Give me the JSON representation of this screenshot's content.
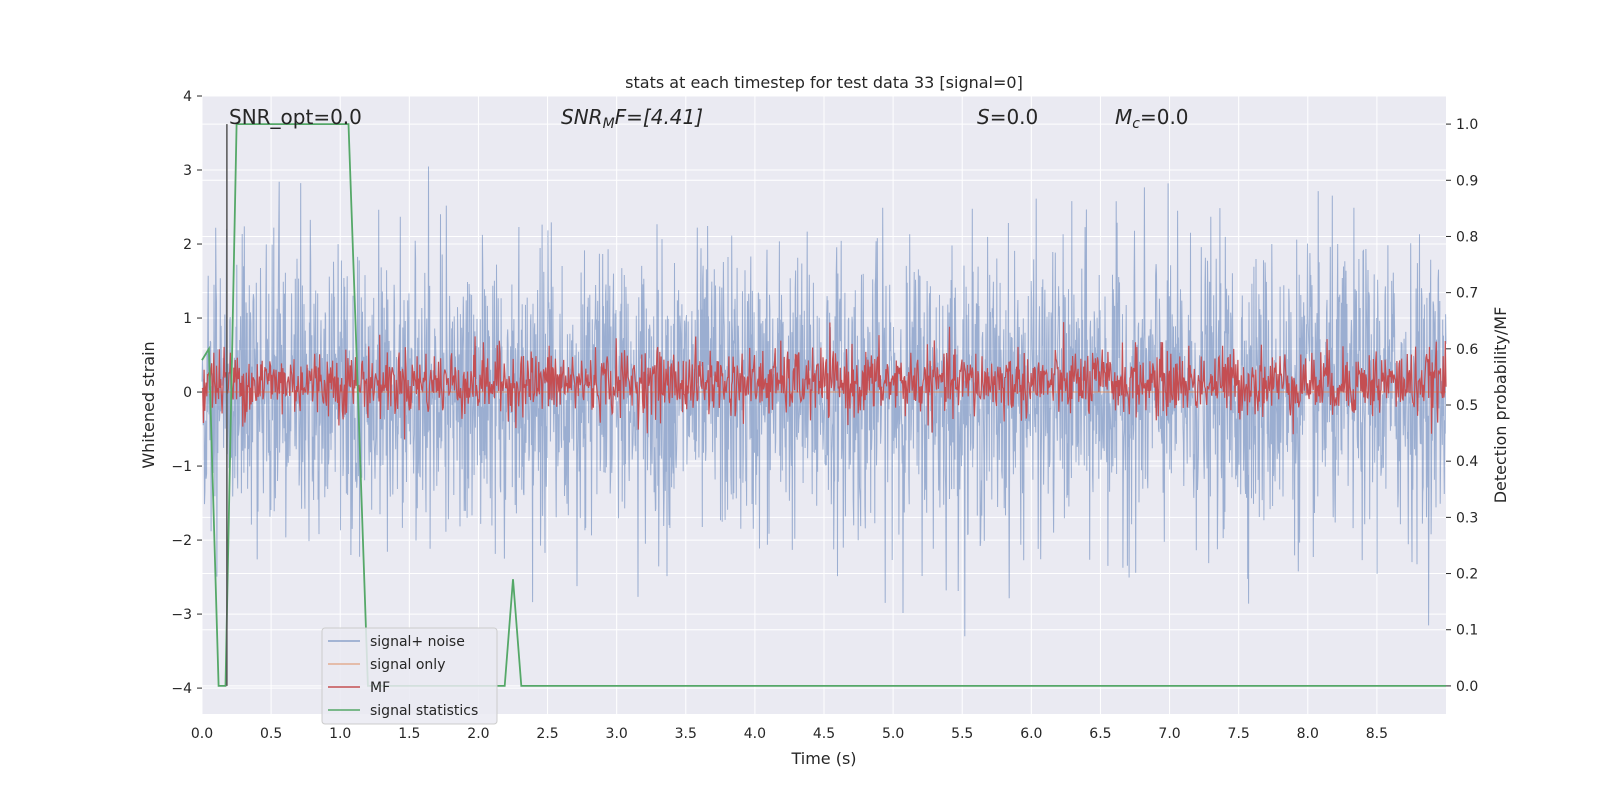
{
  "chart_data": {
    "type": "line",
    "title": "stats at each timestep for test data 33 [signal=0]",
    "xlabel": "Time (s)",
    "ylabel": "Whitened strain",
    "y2label": "Detection probability/MF",
    "xlim": [
      0.0,
      9.0
    ],
    "ylim": [
      -4.35,
      4.0
    ],
    "y2lim": [
      -0.05,
      1.05
    ],
    "xticks": [
      "0.0",
      "0.5",
      "1.0",
      "1.5",
      "2.0",
      "2.5",
      "3.0",
      "3.5",
      "4.0",
      "4.5",
      "5.0",
      "5.5",
      "6.0",
      "6.5",
      "7.0",
      "7.5",
      "8.0",
      "8.5"
    ],
    "xtick_values": [
      0.0,
      0.5,
      1.0,
      1.5,
      2.0,
      2.5,
      3.0,
      3.5,
      4.0,
      4.5,
      5.0,
      5.5,
      6.0,
      6.5,
      7.0,
      7.5,
      8.0,
      8.5
    ],
    "yticks": [
      "4",
      "3",
      "2",
      "1",
      "0",
      "−1",
      "−2",
      "−3",
      "−4"
    ],
    "ytick_values": [
      4,
      3,
      2,
      1,
      0,
      -1,
      -2,
      -3,
      -4
    ],
    "y2ticks": [
      "1.0",
      "0.9",
      "0.8",
      "0.7",
      "0.6",
      "0.5",
      "0.4",
      "0.3",
      "0.2",
      "0.1",
      "0.0"
    ],
    "y2tick_values": [
      1.0,
      0.9,
      0.8,
      0.7,
      0.6,
      0.5,
      0.4,
      0.3,
      0.2,
      0.1,
      0.0
    ],
    "grid": true,
    "legend_position": "lower-left",
    "annotations": {
      "snr_opt": "SNR_opt=0.0",
      "snr_mf_sym": "SNR",
      "snr_mf_sub": "M",
      "snr_mf_rest": "F=[4.41]",
      "s_sym": "S",
      "s_rest": "=0.0",
      "mc_sym": "M",
      "mc_sub": "c",
      "mc_rest": "=0.0"
    },
    "marker_time": 0.18,
    "series": [
      {
        "name": "signal+ noise",
        "color": "#4c72b0",
        "axis": "left",
        "description_range": [
          -3.3,
          3.6
        ],
        "spike_times": [
          0.19,
          0.36,
          0.55,
          1.75,
          2.7,
          4.05,
          4.85,
          5.6,
          7.55,
          8.0
        ]
      },
      {
        "name": "signal only",
        "color": "#dd8452",
        "axis": "left",
        "x": [
          0.0,
          9.0
        ],
        "y": [
          0.0,
          0.0
        ]
      },
      {
        "name": "MF",
        "color": "#c44e52",
        "axis": "right",
        "mean": 0.54,
        "spread": 0.03
      },
      {
        "name": "signal statistics",
        "color": "#55a868",
        "axis": "right",
        "x": [
          0.0,
          0.05,
          0.12,
          0.17,
          0.25,
          0.3,
          1.0,
          1.06,
          1.12,
          1.2,
          2.0,
          2.19,
          2.25,
          2.31,
          2.5,
          9.0
        ],
        "y": [
          0.58,
          0.6,
          0.0,
          0.0,
          1.0,
          1.0,
          1.0,
          1.0,
          0.58,
          0.0,
          0.0,
          0.0,
          0.19,
          0.0,
          0.0,
          0.0
        ]
      }
    ]
  }
}
